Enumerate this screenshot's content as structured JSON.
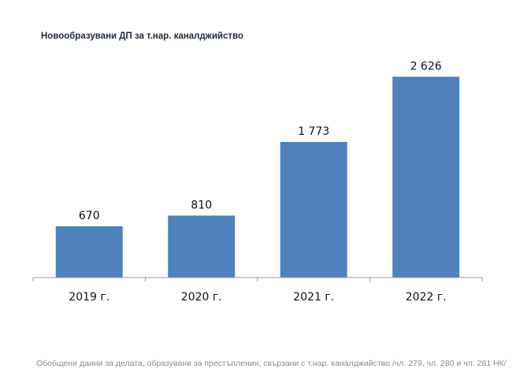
{
  "chart_data": {
    "type": "bar",
    "title": "Новообразувани ДП за т.нар. каналджийство",
    "categories": [
      "2019 г.",
      "2020 г.",
      "2021 г.",
      "2022 г."
    ],
    "values": [
      670,
      810,
      1773,
      2626
    ],
    "data_labels": [
      "670",
      "810",
      "1 773",
      "2 626"
    ],
    "xlabel": "",
    "ylabel": "",
    "ylim": [
      0,
      3000
    ],
    "y_axis_visible": false,
    "grid": false,
    "legend": "none",
    "bar_color": "#4f81bd",
    "footnote": "Обобщени данни за делата, образувани за престъпления, свързани с т.нар. каналджийство /чл. 279, чл. 280 и чл. 281 НК/"
  }
}
